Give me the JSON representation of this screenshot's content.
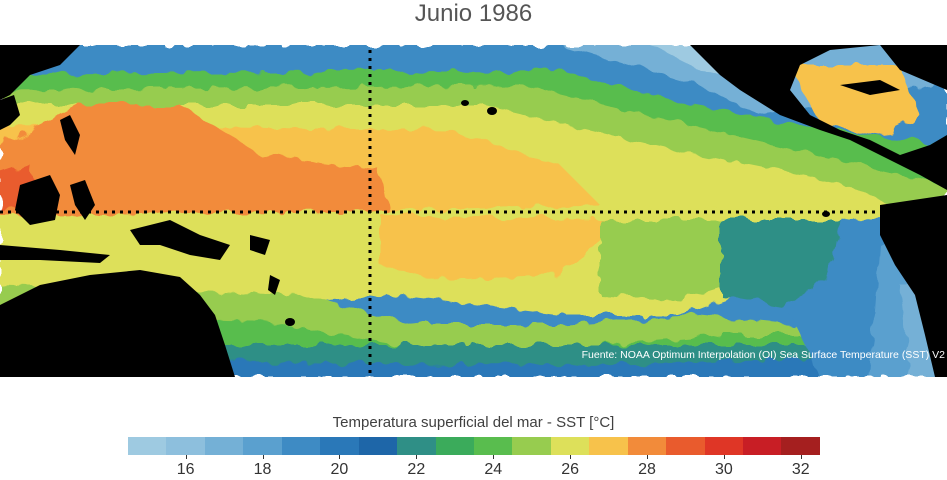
{
  "title": "Junio 1986",
  "source": "Fuente: NOAA Optimum Interpolation (OI) Sea Surface Temperature (SST) V2",
  "colorbar": {
    "label": "Temperatura superficial del mar - SST  [°C]",
    "min": 15,
    "max": 33,
    "step": 1,
    "colors": [
      "#9ecae1",
      "#8dbfdd",
      "#74b0d6",
      "#5aa0cf",
      "#3e8bc4",
      "#2a78b8",
      "#1e66a8",
      "#2f8f86",
      "#3bab5b",
      "#59bd4e",
      "#97cc4f",
      "#dde05a",
      "#f7c24b",
      "#f28b3a",
      "#e95b2d",
      "#df3626",
      "#c81e25",
      "#a51f1f"
    ],
    "ticks": [
      16,
      18,
      20,
      22,
      24,
      26,
      28,
      30,
      32
    ]
  },
  "map": {
    "region": "Pacífico tropical",
    "reference_lines": [
      "equator-line",
      "dateline-line"
    ],
    "colors": {
      "land": "#000000",
      "reference_line": "#000000"
    }
  }
}
